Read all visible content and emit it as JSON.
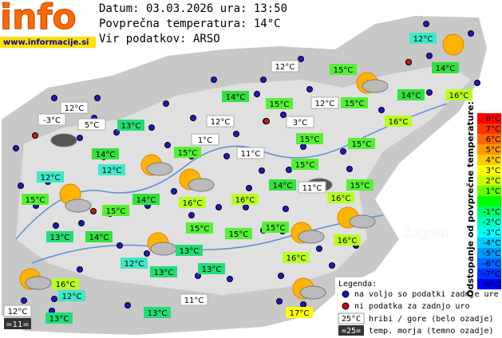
{
  "header": {
    "logo": "info",
    "site": "www.informacije.si",
    "date_line": "Datum: 03.03.2026 ura: 13:50",
    "average_line": "Povprečna temperatura: 14°C",
    "source_line": "Vir podatkov: ARSO"
  },
  "map": {
    "city": "Zagreb",
    "stations": [
      "12°C",
      "12°C",
      "15°C",
      "14°C",
      "14°C",
      "15°C",
      "12°C",
      "15°C",
      "14°C",
      "16°C",
      "12°C",
      "-3°C",
      "5°C",
      "13°C",
      "12°C",
      "3°C",
      "16°C",
      "1°C",
      "15°C",
      "15°C",
      "14°C",
      "11°C",
      "15°C",
      "15°C",
      "12°C",
      "12°C",
      "14°C",
      "11°C",
      "15°C",
      "16°C",
      "15°C",
      "14°C",
      "16°C",
      "16°C",
      "15°C",
      "15°C",
      "15°C",
      "13°C",
      "14°C",
      "15°C",
      "16°C",
      "13°C",
      "16°C",
      "12°C",
      "13°C",
      "13°C",
      "16°C",
      "12°C",
      "12°C",
      "11°C",
      "13°C",
      "13°C",
      "17°C",
      "=11="
    ]
  },
  "legend": {
    "title": "Legenda:",
    "available": "na voljo so podatki zadnje ure",
    "missing": "ni podatka za zadnjo uro",
    "mountain_sample": "25°C",
    "mountain_text": "hribi / gore (belo ozadje)",
    "sea_sample": "=25=",
    "sea_text": "temp. morja (temno ozadje)"
  },
  "scale": {
    "title": "Odstopanje od povprečne temperature:",
    "labels": [
      "8°C",
      "7°C",
      "6°C",
      "5°C",
      "4°C",
      "3°C",
      "2°C",
      "1°C",
      "",
      "-1°C",
      "-2°C",
      "-3°C",
      "-4°C",
      "-5°C",
      "-6°C",
      "-7°C",
      "-8°C"
    ]
  }
}
